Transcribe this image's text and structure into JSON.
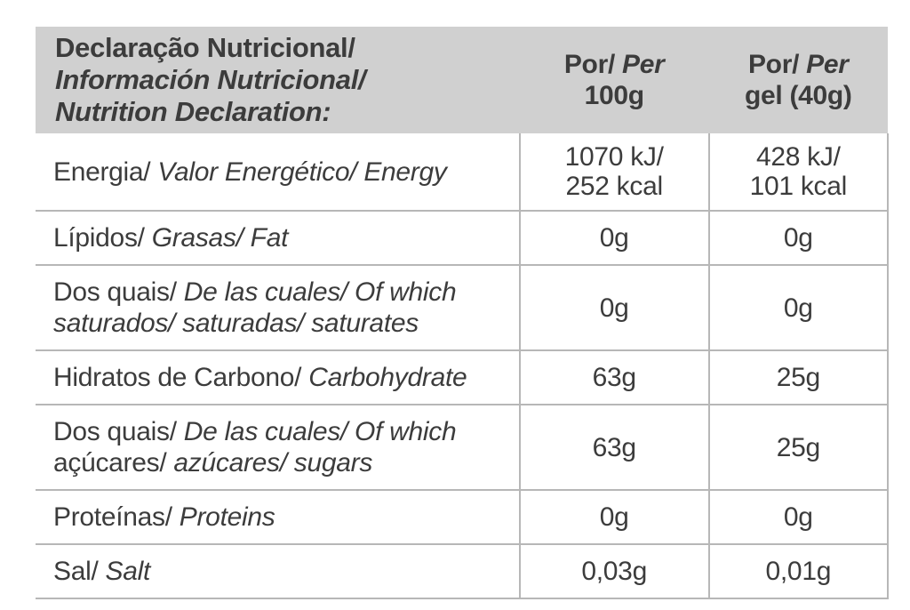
{
  "colors": {
    "header_bg": "#d0d0d0",
    "border": "#b7b7b7",
    "text": "#3c3c3c"
  },
  "header": {
    "title_lines": [
      "Declaração Nutricional/",
      "Información Nutricional/",
      "Nutrition Declaration:"
    ],
    "columns": [
      {
        "por": "Por/ ",
        "per": "Per",
        "line2": "100g"
      },
      {
        "por": "Por/ ",
        "per": "Per",
        "line2": "gel (40g)"
      }
    ]
  },
  "rows": [
    {
      "label": [
        {
          "text": "Energia/ ",
          "italic": false
        },
        {
          "text": "Valor Energético/ Energy",
          "italic": true
        }
      ],
      "per_100g": [
        "1070 kJ/",
        "252 kcal"
      ],
      "per_gel": [
        "428 kJ/",
        "101 kcal"
      ]
    },
    {
      "label": [
        {
          "text": "Lípidos/ ",
          "italic": false
        },
        {
          "text": "Grasas/ Fat",
          "italic": true
        }
      ],
      "per_100g": [
        "0g"
      ],
      "per_gel": [
        "0g"
      ]
    },
    {
      "label": [
        {
          "text": "Dos quais/ ",
          "italic": false
        },
        {
          "text": "De las cuales/ Of which saturados/ saturadas/ saturates",
          "italic": true
        }
      ],
      "per_100g": [
        "0g"
      ],
      "per_gel": [
        "0g"
      ]
    },
    {
      "label": [
        {
          "text": "Hidratos de Carbono/ ",
          "italic": false
        },
        {
          "text": "Carbohydrate",
          "italic": true
        }
      ],
      "per_100g": [
        "63g"
      ],
      "per_gel": [
        "25g"
      ]
    },
    {
      "label": [
        {
          "text": "Dos quais/ ",
          "italic": false
        },
        {
          "text": "De las cuales/ Of which ",
          "italic": true
        },
        {
          "text": "açúcares/ ",
          "italic": false
        },
        {
          "text": "azúcares/ sugars",
          "italic": true
        }
      ],
      "per_100g": [
        "63g"
      ],
      "per_gel": [
        "25g"
      ]
    },
    {
      "label": [
        {
          "text": "Proteínas/ ",
          "italic": false
        },
        {
          "text": "Proteins",
          "italic": true
        }
      ],
      "per_100g": [
        "0g"
      ],
      "per_gel": [
        "0g"
      ]
    },
    {
      "label": [
        {
          "text": "Sal/ ",
          "italic": false
        },
        {
          "text": "Salt",
          "italic": true
        }
      ],
      "per_100g": [
        "0,03g"
      ],
      "per_gel": [
        "0,01g"
      ]
    }
  ]
}
